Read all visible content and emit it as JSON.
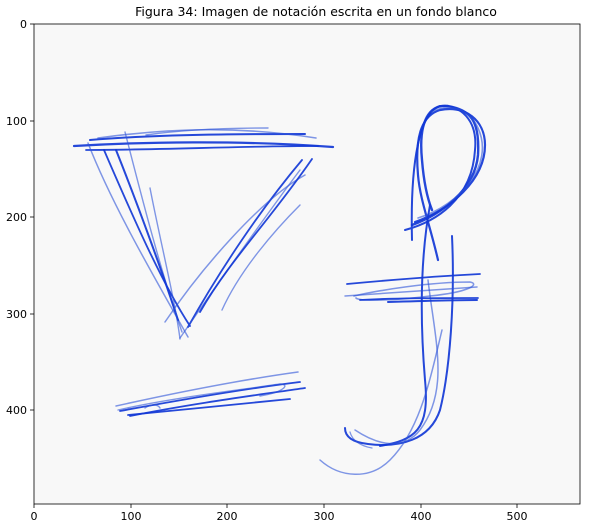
{
  "figure": {
    "title": "Figura 34: Imagen de notación escrita en un fondo blanco",
    "x_ticks": [
      "0",
      "100",
      "200",
      "300",
      "400",
      "500"
    ],
    "y_ticks": [
      "0",
      "100",
      "200",
      "300",
      "400"
    ],
    "x_range": [
      0,
      578
    ],
    "y_range": [
      498,
      0
    ],
    "background_color": "#f8f8f8",
    "ink_color": "#1238d6"
  },
  "strokes": [
    {
      "name": "triangle-symbol"
    },
    {
      "name": "f-hook-symbol"
    },
    {
      "name": "horizontal-scribble-bottom"
    }
  ]
}
